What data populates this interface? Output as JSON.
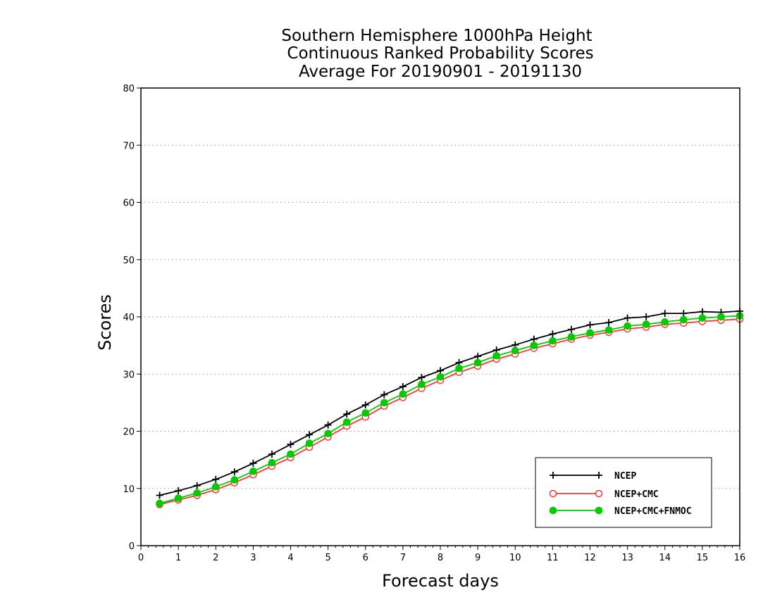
{
  "chart_data": {
    "type": "line",
    "title_lines": [
      "Southern Hemisphere 1000hPa Height",
      "Continuous Ranked Probability Scores",
      "Average For 20190901 - 20191130"
    ],
    "xlabel": "Forecast days",
    "ylabel": "Scores",
    "xlim": [
      0,
      16
    ],
    "ylim": [
      0,
      80
    ],
    "xticks": [
      0,
      1,
      2,
      3,
      4,
      5,
      6,
      7,
      8,
      9,
      10,
      11,
      12,
      13,
      14,
      15,
      16
    ],
    "yticks": [
      0,
      10,
      20,
      30,
      40,
      50,
      60,
      70,
      80
    ],
    "ygrid": true,
    "legend_position": "bottom-right",
    "x": [
      0.5,
      1,
      1.5,
      2,
      2.5,
      3,
      3.5,
      4,
      4.5,
      5,
      5.5,
      6,
      6.5,
      7,
      7.5,
      8,
      8.5,
      9,
      9.5,
      10,
      10.5,
      11,
      11.5,
      12,
      12.5,
      13,
      13.5,
      14,
      14.5,
      15,
      15.5,
      16
    ],
    "series": [
      {
        "name": "NCEP",
        "color": "#000000",
        "marker": "plus",
        "values": [
          8.8,
          9.6,
          10.5,
          11.6,
          12.9,
          14.4,
          16.0,
          17.7,
          19.4,
          21.1,
          23.0,
          24.6,
          26.4,
          27.8,
          29.4,
          30.6,
          32.0,
          33.1,
          34.2,
          35.1,
          36.1,
          37.0,
          37.8,
          38.6,
          39.0,
          39.8,
          40.0,
          40.6,
          40.6,
          40.9,
          40.8,
          41.0
        ]
      },
      {
        "name": "NCEP+CMC",
        "color": "#ff3333",
        "marker": "open-circle",
        "values": [
          7.2,
          8.0,
          8.8,
          9.8,
          11.0,
          12.4,
          13.9,
          15.4,
          17.2,
          19.0,
          20.9,
          22.5,
          24.4,
          25.9,
          27.5,
          28.9,
          30.3,
          31.4,
          32.6,
          33.5,
          34.5,
          35.3,
          36.1,
          36.8,
          37.3,
          37.9,
          38.2,
          38.7,
          38.9,
          39.2,
          39.4,
          39.6
        ]
      },
      {
        "name": "NCEP+CMC+FNMOC",
        "color": "#00cc00",
        "marker": "filled-circle",
        "values": [
          7.4,
          8.3,
          9.2,
          10.3,
          11.5,
          13.0,
          14.5,
          16.0,
          17.9,
          19.6,
          21.6,
          23.2,
          25.0,
          26.5,
          28.2,
          29.5,
          31.0,
          32.0,
          33.2,
          34.1,
          35.0,
          35.8,
          36.5,
          37.2,
          37.7,
          38.4,
          38.7,
          39.1,
          39.5,
          39.8,
          40.0,
          40.2
        ]
      }
    ]
  }
}
